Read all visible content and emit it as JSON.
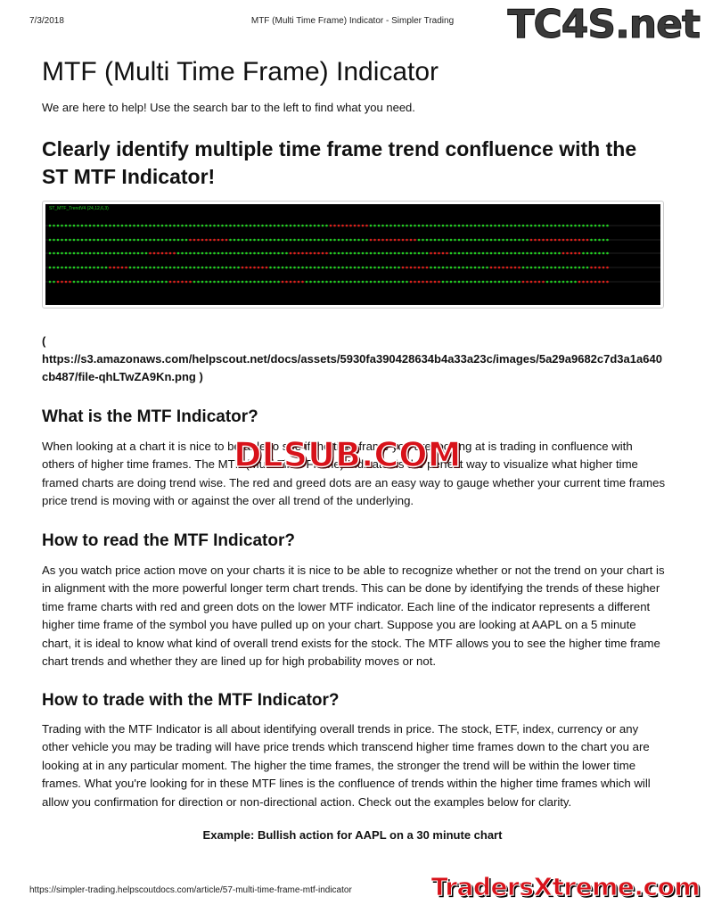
{
  "print_header": {
    "date": "7/3/2018",
    "title": "MTF (Multi Time Frame) Indicator - Simpler Trading"
  },
  "page": {
    "title": "MTF (Multi Time Frame) Indicator",
    "intro": "We are here to help! Use the search bar to the left to find what you need.",
    "headline": "Clearly identify multiple time frame trend confluence with the ST MTF Indicator!",
    "image_label": "ST_MTF_TrendV4 (24,12,6,3)",
    "image_link_open": "(",
    "image_link": "https://s3.amazonaws.com/helpscout.net/docs/assets/5930fa390428634b4a33a23c/images/5a29a9682c7d3a1a640cb487/file-qhLTwZA9Kn.png )",
    "sections": [
      {
        "heading": "What is the MTF Indicator?",
        "text": "When looking at a chart it is nice to be able to see if the time frame you are looking at is trading in confluence with others of higher time frames. The MTF (Multi Time Frame) Indicator is the perfect way to visualize what higher time framed charts are doing trend wise. The red and greed dots are an easy way to gauge whether your current time frames price trend is moving with or against the over all trend of the underlying."
      },
      {
        "heading": "How to read the MTF Indicator?",
        "text": "As you watch price action move on your charts it is nice to be able to recognize whether or not the trend on your chart is in alignment with the more powerful longer term chart trends. This can be done by identifying the trends of these higher time frame charts with red and green dots on the lower MTF indicator. Each line of the indicator represents a different higher time frame of the symbol you have pulled up on your chart. Suppose you are looking at AAPL on a 5 minute chart, it is ideal to know what kind of overall trend exists for the stock. The MTF allows you to see the higher time frame chart trends and whether they are lined up for high probability moves or not."
      },
      {
        "heading": "How to trade with the MTF Indicator?",
        "text": "Trading with the MTF Indicator is all about identifying overall trends in price. The stock, ETF, index, currency or any other vehicle you may be trading will have price trends which transcend higher time frames down to the chart you are looking at in any particular moment. The higher the time frames, the stronger the trend will be within the lower time frames. What you're looking for in these MTF lines is the confluence of trends within the higher time frames which will allow you confirmation for direction or non-directional action. Check out the examples below for clarity."
      }
    ],
    "example_caption": "Example: Bullish action for AAPL on a 30 minute chart"
  },
  "print_footer": {
    "url": "https://simpler-trading.helpscoutdocs.com/article/57-multi-time-frame-mtf-indicator"
  },
  "watermarks": {
    "top": "TC4S.net",
    "middle": "DLSUB.COM",
    "bottom": "TradersXtreme.com"
  }
}
